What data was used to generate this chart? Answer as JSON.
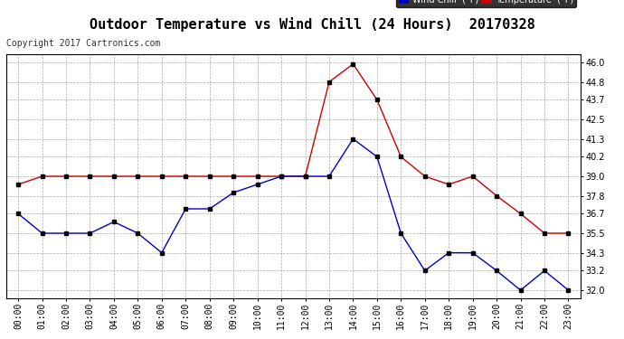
{
  "title": "Outdoor Temperature vs Wind Chill (24 Hours)  20170328",
  "copyright": "Copyright 2017 Cartronics.com",
  "hours": [
    "00:00",
    "01:00",
    "02:00",
    "03:00",
    "04:00",
    "05:00",
    "06:00",
    "07:00",
    "08:00",
    "09:00",
    "10:00",
    "11:00",
    "12:00",
    "13:00",
    "14:00",
    "15:00",
    "16:00",
    "17:00",
    "18:00",
    "19:00",
    "20:00",
    "21:00",
    "22:00",
    "23:00"
  ],
  "temperature": [
    38.5,
    39.0,
    39.0,
    39.0,
    39.0,
    39.0,
    39.0,
    39.0,
    39.0,
    39.0,
    39.0,
    39.0,
    39.0,
    44.8,
    45.9,
    43.7,
    40.2,
    39.0,
    38.5,
    39.0,
    37.8,
    36.7,
    35.5,
    35.5
  ],
  "wind_chill": [
    36.7,
    35.5,
    35.5,
    35.5,
    36.2,
    35.5,
    34.3,
    37.0,
    37.0,
    38.0,
    38.5,
    39.0,
    39.0,
    39.0,
    41.3,
    40.2,
    35.5,
    33.2,
    34.3,
    34.3,
    33.2,
    32.0,
    33.2,
    32.0
  ],
  "temp_color": "#cc0000",
  "wind_chill_color": "#0000cc",
  "marker_color": "#000000",
  "bg_color": "#ffffff",
  "grid_color": "#aaaaaa",
  "ylim_min": 31.5,
  "ylim_max": 46.5,
  "yticks": [
    32.0,
    33.2,
    34.3,
    35.5,
    36.7,
    37.8,
    39.0,
    40.2,
    41.3,
    42.5,
    43.7,
    44.8,
    46.0
  ],
  "legend_wind_chill_bg": "#0000cc",
  "legend_temp_bg": "#cc0000",
  "legend_text_color": "#ffffff",
  "title_fontsize": 11,
  "copyright_fontsize": 7,
  "tick_fontsize": 7
}
